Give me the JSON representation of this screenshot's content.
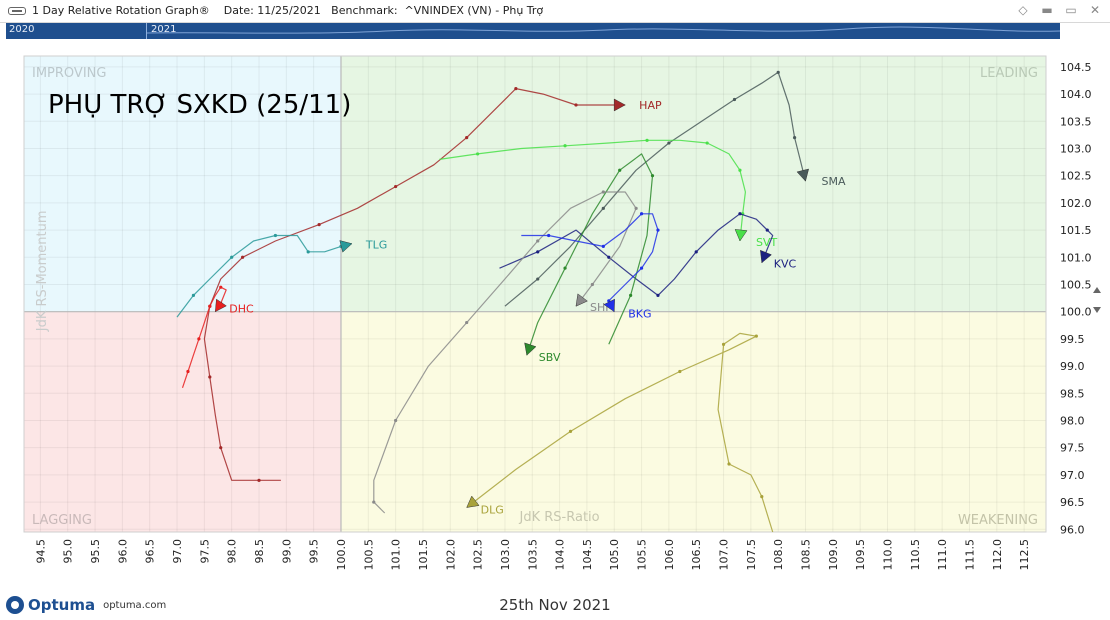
{
  "window": {
    "title": "1 Day Relative Rotation Graph®    Date: 11/25/2021   Benchmark:  ^VNINDEX (VN) - Phụ Trợ"
  },
  "timeline": {
    "labels": [
      "2020",
      "2021"
    ]
  },
  "footer": {
    "brand": "Optuma",
    "url": "optuma.com",
    "date": "25th Nov 2021"
  },
  "chart_data": {
    "type": "scatter",
    "title": "PHỤ TRỢ SXKD (25/11)",
    "xlabel": "JdK RS-Ratio",
    "ylabel": "JdK RS-Momentum",
    "xlim": [
      94.2,
      112.9
    ],
    "ylim": [
      95.95,
      104.7
    ],
    "x_ticks": [
      "94.5",
      "95.0",
      "95.5",
      "96.0",
      "96.5",
      "97.0",
      "97.5",
      "98.0",
      "98.5",
      "99.0",
      "99.5",
      "100.0",
      "100.5",
      "101.0",
      "101.5",
      "102.0",
      "102.5",
      "103.0",
      "103.5",
      "104.0",
      "104.5",
      "105.0",
      "105.5",
      "106.0",
      "106.5",
      "107.0",
      "107.5",
      "108.0",
      "108.5",
      "109.0",
      "109.5",
      "110.0",
      "110.5",
      "111.0",
      "111.5",
      "112.0",
      "112.5"
    ],
    "y_ticks": [
      "104.5",
      "104.0",
      "103.5",
      "103.0",
      "102.5",
      "102.0",
      "101.5",
      "101.0",
      "100.5",
      "100.0",
      "99.5",
      "99.0",
      "98.5",
      "98.0",
      "97.5",
      "97.0",
      "96.5",
      "96.0"
    ],
    "center": [
      100.0,
      100.0
    ],
    "quadrants": {
      "improving": "IMPROVING",
      "leading": "LEADING",
      "lagging": "LAGGING",
      "weakening": "WEAKENING"
    },
    "grid": true,
    "quadrant_colors": {
      "improving": "#e8f8fd",
      "leading": "#e6f6e3",
      "lagging": "#fce6e6",
      "weakening": "#fbfbe1"
    },
    "series": [
      {
        "name": "HAP",
        "color": "#a32929",
        "x": [
          98.9,
          98.5,
          98.0,
          97.8,
          97.7,
          97.6,
          97.5,
          97.6,
          97.8,
          98.2,
          98.8,
          99.6,
          100.3,
          101.0,
          101.7,
          102.3,
          102.8,
          103.2,
          103.7,
          104.3,
          104.8,
          105.2
        ],
        "y": [
          96.9,
          96.9,
          96.9,
          97.5,
          98.1,
          98.8,
          99.5,
          100.1,
          100.6,
          101.0,
          101.3,
          101.6,
          101.9,
          102.3,
          102.7,
          103.2,
          103.7,
          104.1,
          104.0,
          103.8,
          103.8,
          103.8
        ]
      },
      {
        "name": "SMA",
        "color": "#4a5a5a",
        "x": [
          103.0,
          103.6,
          104.2,
          104.8,
          105.4,
          106.0,
          106.6,
          107.2,
          107.7,
          108.0,
          108.2,
          108.3,
          108.4,
          108.5
        ],
        "y": [
          100.1,
          100.6,
          101.2,
          101.9,
          102.6,
          103.1,
          103.5,
          103.9,
          104.2,
          104.4,
          103.8,
          103.2,
          102.8,
          102.4
        ]
      },
      {
        "name": "SVT",
        "color": "#49e049",
        "x": [
          101.8,
          102.5,
          103.3,
          104.1,
          104.9,
          105.6,
          106.2,
          106.7,
          107.1,
          107.3,
          107.4,
          107.35,
          107.3
        ],
        "y": [
          102.8,
          102.9,
          103.0,
          103.05,
          103.1,
          103.15,
          103.15,
          103.1,
          102.9,
          102.6,
          102.2,
          101.8,
          101.3
        ]
      },
      {
        "name": "KVC",
        "color": "#1c2080",
        "x": [
          102.9,
          103.6,
          104.3,
          104.9,
          105.4,
          105.8,
          106.1,
          106.5,
          106.9,
          107.3,
          107.6,
          107.8,
          107.9,
          107.7
        ],
        "y": [
          100.8,
          101.1,
          101.5,
          101.0,
          100.6,
          100.3,
          100.6,
          101.1,
          101.5,
          101.8,
          101.7,
          101.5,
          101.4,
          100.9
        ]
      },
      {
        "name": "TLG",
        "color": "#2a9a9a",
        "x": [
          97.0,
          97.3,
          97.6,
          98.0,
          98.4,
          98.8,
          99.2,
          99.4,
          99.7,
          100.0,
          100.2
        ],
        "y": [
          99.9,
          100.3,
          100.6,
          101.0,
          101.3,
          101.4,
          101.4,
          101.1,
          101.1,
          101.2,
          101.25
        ]
      },
      {
        "name": "DHC",
        "color": "#e82020",
        "x": [
          97.1,
          97.2,
          97.3,
          97.4,
          97.5,
          97.6,
          97.7,
          97.8,
          97.9,
          97.8,
          97.7
        ],
        "y": [
          98.6,
          98.9,
          99.2,
          99.5,
          99.8,
          100.1,
          100.3,
          100.45,
          100.4,
          100.15,
          100.0
        ]
      },
      {
        "name": "SBV",
        "color": "#2d8a2d",
        "x": [
          104.9,
          105.3,
          105.6,
          105.7,
          105.5,
          105.1,
          104.6,
          104.1,
          103.6,
          103.4
        ],
        "y": [
          99.4,
          100.3,
          101.4,
          102.5,
          102.9,
          102.6,
          101.8,
          100.8,
          99.8,
          99.2
        ]
      },
      {
        "name": "SHI",
        "color": "#8a8a8a",
        "x": [
          100.8,
          100.6,
          100.6,
          101.0,
          101.6,
          102.3,
          103.0,
          103.6,
          104.2,
          104.8,
          105.2,
          105.4,
          105.1,
          104.6,
          104.3
        ],
        "y": [
          96.3,
          96.5,
          96.9,
          98.0,
          99.0,
          99.8,
          100.6,
          101.3,
          101.9,
          102.2,
          102.2,
          101.9,
          101.2,
          100.5,
          100.1
        ]
      },
      {
        "name": "BKG",
        "color": "#2030e8",
        "x": [
          103.3,
          103.8,
          104.3,
          104.8,
          105.2,
          105.5,
          105.7,
          105.8,
          105.7,
          105.5,
          105.2,
          104.9,
          105.0
        ],
        "y": [
          101.4,
          101.4,
          101.3,
          101.2,
          101.5,
          101.8,
          101.8,
          101.5,
          101.1,
          100.8,
          100.5,
          100.2,
          100.0
        ]
      },
      {
        "name": "DLG",
        "color": "#a8a23a",
        "x": [
          107.9,
          107.7,
          107.5,
          107.1,
          106.9,
          107.0,
          107.3,
          107.6,
          107.1,
          106.2,
          105.2,
          104.2,
          103.2,
          102.3
        ],
        "y": [
          95.95,
          96.6,
          97.0,
          97.2,
          98.2,
          99.4,
          99.6,
          99.55,
          99.3,
          98.9,
          98.4,
          97.8,
          97.1,
          96.4
        ]
      }
    ]
  }
}
